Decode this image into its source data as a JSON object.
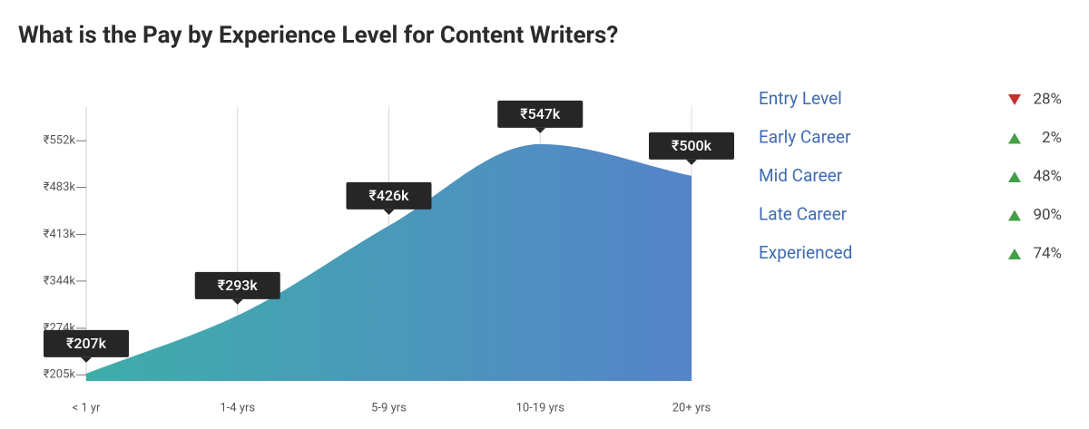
{
  "chart_data": {
    "type": "area",
    "title": "What is the Pay by Experience Level for Content Writers?",
    "categories": [
      "< 1 yr",
      "1-4 yrs",
      "5-9 yrs",
      "10-19 yrs",
      "20+ yrs"
    ],
    "values": [
      207,
      293,
      426,
      547,
      500
    ],
    "value_labels": [
      "₹207k",
      "₹293k",
      "₹426k",
      "₹547k",
      "₹500k"
    ],
    "colors": [
      "#3fadaa",
      "#5584c9"
    ],
    "ylim": [
      196,
      602
    ],
    "yticks": [
      {
        "value": 205,
        "label": "₹205k"
      },
      {
        "value": 274,
        "label": "₹274k"
      },
      {
        "value": 344,
        "label": "₹344k"
      },
      {
        "value": 413,
        "label": "₹413k"
      },
      {
        "value": 483,
        "label": "₹483k"
      },
      {
        "value": 552,
        "label": "₹552k"
      }
    ],
    "grid": "x",
    "changes": [
      {
        "name": "Entry Level",
        "direction": "down",
        "value": 28,
        "label": "28%"
      },
      {
        "name": "Early Career",
        "direction": "up",
        "value": 2,
        "label": "2%"
      },
      {
        "name": "Mid Career",
        "direction": "up",
        "value": 48,
        "label": "48%"
      },
      {
        "name": "Late Career",
        "direction": "up",
        "value": 90,
        "label": "90%"
      },
      {
        "name": "Experienced",
        "direction": "up",
        "value": 74,
        "label": "74%"
      }
    ]
  }
}
